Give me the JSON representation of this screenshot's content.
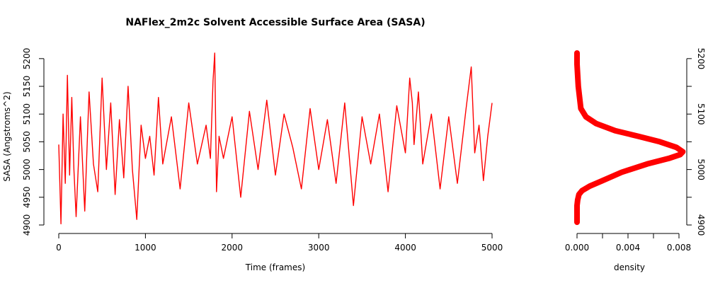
{
  "chart_data": [
    {
      "type": "line",
      "title": "NAFlex_2m2c Solvent Accessible Surface Area (SASA)",
      "xlabel": "Time (frames)",
      "ylabel": "SASA (Angstroms^2)",
      "xlim": [
        0,
        5000
      ],
      "ylim": [
        4900,
        5210
      ],
      "x_ticks": [
        0,
        1000,
        2000,
        3000,
        4000,
        5000
      ],
      "y_ticks": [
        4900,
        4950,
        5000,
        5050,
        5100,
        5150,
        5200
      ],
      "x_tick_labels": [
        "0",
        "1000",
        "2000",
        "3000",
        "4000",
        "5000"
      ],
      "y_tick_labels": [
        "4900",
        "4950",
        "5000",
        "5050",
        "5100",
        "5150",
        "5200"
      ],
      "grid": false,
      "color": "#ff0000",
      "series": [
        {
          "x": [
            0,
            25,
            50,
            75,
            100,
            125,
            150,
            175,
            200,
            250,
            300,
            350,
            400,
            450,
            500,
            550,
            600,
            650,
            700,
            750,
            800,
            850,
            900,
            950,
            1000,
            1050,
            1100,
            1150,
            1200,
            1300,
            1400,
            1500,
            1600,
            1700,
            1750,
            1780,
            1800,
            1820,
            1850,
            1900,
            2000,
            2100,
            2200,
            2300,
            2400,
            2500,
            2600,
            2700,
            2800,
            2900,
            3000,
            3100,
            3200,
            3300,
            3400,
            3500,
            3600,
            3700,
            3800,
            3900,
            4000,
            4050,
            4080,
            4100,
            4150,
            4200,
            4300,
            4400,
            4500,
            4600,
            4700,
            4760,
            4800,
            4850,
            4900,
            4950,
            5000
          ],
          "y": [
            5045,
            4902,
            5100,
            4975,
            5170,
            4990,
            5130,
            5000,
            4915,
            5095,
            4925,
            5140,
            5010,
            4960,
            5165,
            5000,
            5120,
            4955,
            5090,
            4985,
            5150,
            5000,
            4910,
            5080,
            5020,
            5060,
            4990,
            5130,
            5010,
            5095,
            4965,
            5120,
            5010,
            5080,
            5020,
            5160,
            5210,
            4960,
            5060,
            5020,
            5095,
            4950,
            5105,
            5000,
            5125,
            4990,
            5100,
            5040,
            4965,
            5110,
            5000,
            5090,
            4975,
            5120,
            4935,
            5095,
            5010,
            5100,
            4960,
            5115,
            5030,
            5165,
            5120,
            5045,
            5140,
            5010,
            5100,
            4965,
            5095,
            4975,
            5110,
            5185,
            5030,
            5080,
            4980,
            5060,
            5120
          ]
        }
      ]
    },
    {
      "type": "line",
      "title": "",
      "xlabel": "density",
      "ylabel": "",
      "xlim": [
        0,
        0.008
      ],
      "ylim": [
        4900,
        5210
      ],
      "x_ticks": [
        0,
        0.002,
        0.004,
        0.006,
        0.008
      ],
      "x_tick_labels": [
        "0.000",
        "0.004",
        "0.008"
      ],
      "x_tick_label_values": [
        0,
        0.004,
        0.008
      ],
      "y_ticks": [
        4900,
        4950,
        5000,
        5050,
        5100,
        5150,
        5200
      ],
      "y_tick_labels": [
        "4900",
        "5000",
        "5100",
        "5200"
      ],
      "y_tick_label_values": [
        4900,
        5000,
        5100,
        5200
      ],
      "y_axis_side": "right",
      "grid": false,
      "color": "#ff0000",
      "series": [
        {
          "x": [
            0,
            0,
            0,
            5e-05,
            0.00015,
            0.0004,
            0.001,
            0.002,
            0.0035,
            0.0055,
            0.0072,
            0.0081,
            0.0083,
            0.0078,
            0.0065,
            0.0048,
            0.003,
            0.0015,
            0.0007,
            0.0003,
            0.0002,
            0.0001,
            5e-05,
            0,
            0
          ],
          "y": [
            4905,
            4920,
            4935,
            4945,
            4955,
            4962,
            4970,
            4980,
            4995,
            5010,
            5020,
            5027,
            5032,
            5040,
            5050,
            5060,
            5070,
            5083,
            5095,
            5110,
            5130,
            5150,
            5170,
            5190,
            5210
          ]
        }
      ]
    }
  ]
}
